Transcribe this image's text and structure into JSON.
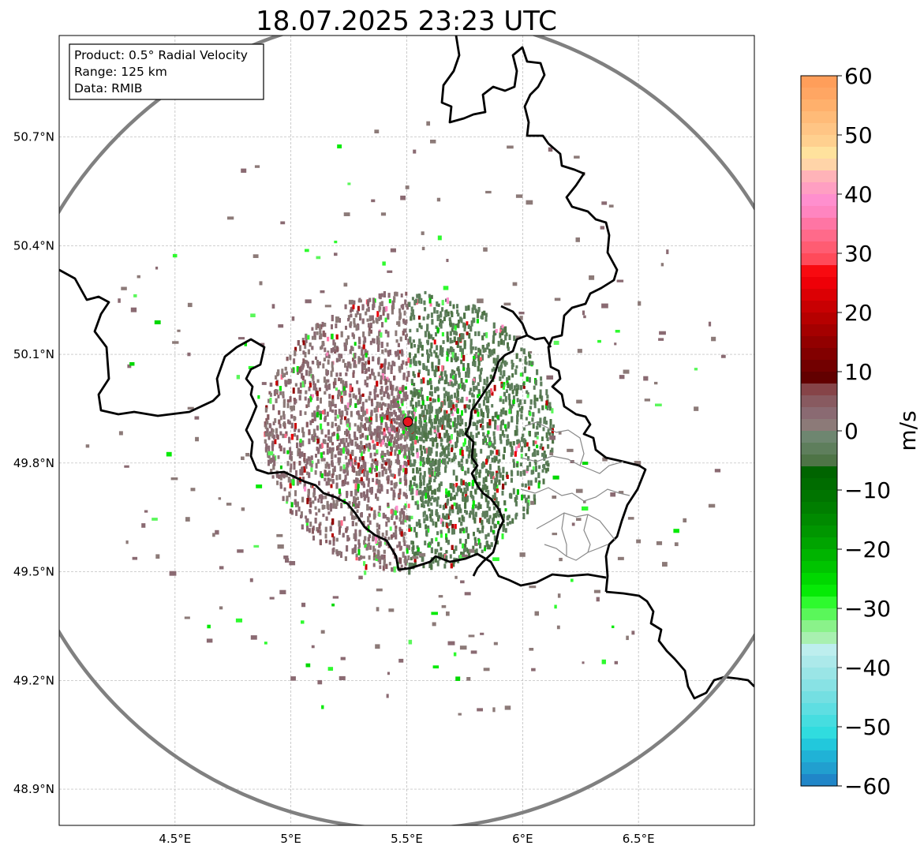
{
  "title": "18.07.2025 23:23 UTC",
  "info_box": {
    "line1": "Product: 0.5° Radial Velocity",
    "line2": "Range: 125 km",
    "line3": "Data: RMIB"
  },
  "map": {
    "lon_range": [
      4.0,
      7.0
    ],
    "lat_range": [
      48.8,
      50.98
    ],
    "lon_ticks": [
      {
        "value": 4.5,
        "label": "4.5°E"
      },
      {
        "value": 5.0,
        "label": "5°E"
      },
      {
        "value": 5.5,
        "label": "5.5°E"
      },
      {
        "value": 6.0,
        "label": "6°E"
      },
      {
        "value": 6.5,
        "label": "6.5°E"
      }
    ],
    "lat_ticks": [
      {
        "value": 48.9,
        "label": "48.9°N"
      },
      {
        "value": 49.2,
        "label": "49.2°N"
      },
      {
        "value": 49.5,
        "label": "49.5°N"
      },
      {
        "value": 49.8,
        "label": "49.8°N"
      },
      {
        "value": 50.1,
        "label": "50.1°N"
      },
      {
        "value": 50.4,
        "label": "50.4°N"
      },
      {
        "value": 50.7,
        "label": "50.7°N"
      }
    ],
    "radar_site": {
      "lon": 5.505,
      "lat": 49.914
    },
    "range_km": 125,
    "range_ring_color": "#808080",
    "site_marker_color": "#e8141e"
  },
  "colorbar": {
    "label": "m/s",
    "vmin": -60,
    "vmax": 60,
    "ticks": [
      {
        "value": 60,
        "label": "60"
      },
      {
        "value": 50,
        "label": "50"
      },
      {
        "value": 40,
        "label": "40"
      },
      {
        "value": 30,
        "label": "30"
      },
      {
        "value": 20,
        "label": "20"
      },
      {
        "value": 10,
        "label": "10"
      },
      {
        "value": 0,
        "label": "0"
      },
      {
        "value": -10,
        "label": "−10"
      },
      {
        "value": -20,
        "label": "−20"
      },
      {
        "value": -30,
        "label": "−30"
      },
      {
        "value": -40,
        "label": "−40"
      },
      {
        "value": -50,
        "label": "−50"
      },
      {
        "value": -60,
        "label": "−60"
      }
    ],
    "bands": [
      {
        "from": 58,
        "to": 60,
        "color": "#ff9e5a"
      },
      {
        "from": 56,
        "to": 58,
        "color": "#ffa663"
      },
      {
        "from": 54,
        "to": 56,
        "color": "#ffb06c"
      },
      {
        "from": 52,
        "to": 54,
        "color": "#ffbb78"
      },
      {
        "from": 50,
        "to": 52,
        "color": "#ffc585"
      },
      {
        "from": 48,
        "to": 50,
        "color": "#ffd08f"
      },
      {
        "from": 46,
        "to": 48,
        "color": "#ffe29d"
      },
      {
        "from": 44,
        "to": 46,
        "color": "#ffd4a8"
      },
      {
        "from": 42,
        "to": 44,
        "color": "#ffb3b8"
      },
      {
        "from": 40,
        "to": 42,
        "color": "#ff9fc2"
      },
      {
        "from": 38,
        "to": 40,
        "color": "#ff8fce"
      },
      {
        "from": 36,
        "to": 38,
        "color": "#ff85c0"
      },
      {
        "from": 34,
        "to": 36,
        "color": "#ff75a4"
      },
      {
        "from": 32,
        "to": 34,
        "color": "#ff6a8a"
      },
      {
        "from": 30,
        "to": 32,
        "color": "#ff5c72"
      },
      {
        "from": 28,
        "to": 30,
        "color": "#ff4a5a"
      },
      {
        "from": 26,
        "to": 28,
        "color": "#f80a10"
      },
      {
        "from": 24,
        "to": 26,
        "color": "#ee0008"
      },
      {
        "from": 22,
        "to": 24,
        "color": "#dc0004"
      },
      {
        "from": 20,
        "to": 22,
        "color": "#c80002"
      },
      {
        "from": 18,
        "to": 20,
        "color": "#b60000"
      },
      {
        "from": 16,
        "to": 18,
        "color": "#a40000"
      },
      {
        "from": 14,
        "to": 16,
        "color": "#920000"
      },
      {
        "from": 12,
        "to": 14,
        "color": "#820000"
      },
      {
        "from": 10,
        "to": 12,
        "color": "#720000"
      },
      {
        "from": 8,
        "to": 10,
        "color": "#620000"
      },
      {
        "from": 6,
        "to": 8,
        "color": "#864448"
      },
      {
        "from": 4,
        "to": 6,
        "color": "#885a60"
      },
      {
        "from": 2,
        "to": 4,
        "color": "#8a6a72"
      },
      {
        "from": 0,
        "to": 2,
        "color": "#8c7a78"
      },
      {
        "from": -2,
        "to": 0,
        "color": "#6e8670"
      },
      {
        "from": -4,
        "to": -2,
        "color": "#5e7e5c"
      },
      {
        "from": -6,
        "to": -4,
        "color": "#4e7446"
      },
      {
        "from": -8,
        "to": -6,
        "color": "#006400"
      },
      {
        "from": -10,
        "to": -8,
        "color": "#006c00"
      },
      {
        "from": -12,
        "to": -10,
        "color": "#007400"
      },
      {
        "from": -14,
        "to": -12,
        "color": "#007e00"
      },
      {
        "from": -16,
        "to": -14,
        "color": "#008a00"
      },
      {
        "from": -18,
        "to": -16,
        "color": "#009600"
      },
      {
        "from": -20,
        "to": -18,
        "color": "#00a400"
      },
      {
        "from": -22,
        "to": -20,
        "color": "#00b400"
      },
      {
        "from": -24,
        "to": -22,
        "color": "#00c400"
      },
      {
        "from": -26,
        "to": -24,
        "color": "#00d800"
      },
      {
        "from": -28,
        "to": -26,
        "color": "#06ea06"
      },
      {
        "from": -30,
        "to": -28,
        "color": "#2efa2e"
      },
      {
        "from": -32,
        "to": -30,
        "color": "#5af75a"
      },
      {
        "from": -34,
        "to": -32,
        "color": "#8af28a"
      },
      {
        "from": -36,
        "to": -34,
        "color": "#a8f0b0"
      },
      {
        "from": -38,
        "to": -36,
        "color": "#bdeeee"
      },
      {
        "from": -40,
        "to": -38,
        "color": "#ace9ea"
      },
      {
        "from": -42,
        "to": -40,
        "color": "#9ae5e6"
      },
      {
        "from": -44,
        "to": -42,
        "color": "#88e2e4"
      },
      {
        "from": -46,
        "to": -44,
        "color": "#74dfe2"
      },
      {
        "from": -48,
        "to": -46,
        "color": "#5edee2"
      },
      {
        "from": -50,
        "to": -48,
        "color": "#46dde0"
      },
      {
        "from": -52,
        "to": -50,
        "color": "#30dcdf"
      },
      {
        "from": -54,
        "to": -52,
        "color": "#22c8dc"
      },
      {
        "from": -56,
        "to": -54,
        "color": "#20b2d6"
      },
      {
        "from": -58,
        "to": -56,
        "color": "#219fcf"
      },
      {
        "from": -60,
        "to": -58,
        "color": "#2086c8"
      }
    ]
  }
}
